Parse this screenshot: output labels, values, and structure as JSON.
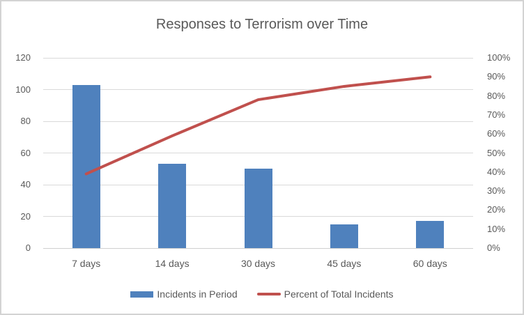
{
  "chart_data": {
    "type": "bar",
    "subtype": "pareto-combo",
    "title": "Responses to Terrorism over Time",
    "categories": [
      "7 days",
      "14 days",
      "30 days",
      "45 days",
      "60 days"
    ],
    "series": [
      {
        "name": "Incidents in Period",
        "type": "bar",
        "axis": "left",
        "values": [
          103,
          53,
          50,
          15,
          17
        ],
        "color": "#4f81bd"
      },
      {
        "name": "Percent of Total Incidents",
        "type": "line",
        "axis": "right",
        "values_percent": [
          39,
          59,
          78,
          85,
          90
        ],
        "color": "#c0504d"
      }
    ],
    "left_axis": {
      "min": 0,
      "max": 120,
      "step": 20,
      "tick_values": [
        0,
        20,
        40,
        60,
        80,
        100,
        120
      ],
      "tick_labels": [
        "0",
        "20",
        "40",
        "60",
        "80",
        "100",
        "120"
      ]
    },
    "right_axis": {
      "min": 0,
      "max": 100,
      "step": 10,
      "tick_values": [
        0,
        10,
        20,
        30,
        40,
        50,
        60,
        70,
        80,
        90,
        100
      ],
      "tick_labels": [
        "0%",
        "10%",
        "20%",
        "30%",
        "40%",
        "50%",
        "60%",
        "70%",
        "80%",
        "90%",
        "100%"
      ]
    },
    "grid": true,
    "legend_position": "bottom",
    "colors": {
      "text": "#595959",
      "gridline": "#d9d9d9",
      "frame_border": "#d3d3d3",
      "background": "#ffffff"
    }
  }
}
